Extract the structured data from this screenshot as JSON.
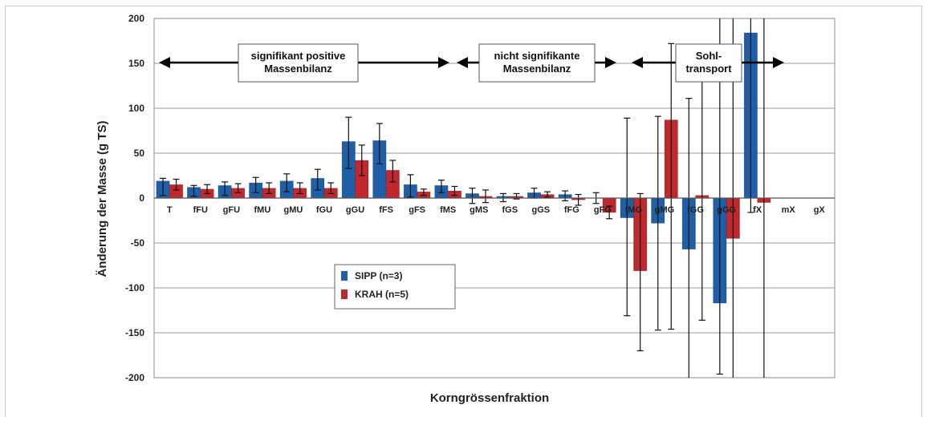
{
  "chart_data": {
    "type": "bar",
    "xlabel": "Korngrössenfraktion",
    "ylabel": "Änderung der Masse (g TS)",
    "ylim": [
      -200,
      200
    ],
    "yticks": [
      200,
      150,
      100,
      50,
      0,
      -50,
      -100,
      -150,
      -200
    ],
    "grid": true,
    "legend_position": "lower-left inside plot",
    "categories": [
      "T",
      "fFU",
      "gFU",
      "fMU",
      "gMU",
      "fGU",
      "gGU",
      "fFS",
      "gFS",
      "fMS",
      "gMS",
      "fGS",
      "gGS",
      "fFG",
      "gFG",
      "fMG",
      "gMG",
      "fGG",
      "gGG",
      "fX",
      "mX",
      "gX"
    ],
    "series": [
      {
        "name": "SIPP (n=3)",
        "color": "#1f5fa8",
        "values": [
          19,
          12,
          14,
          17,
          19,
          22,
          63,
          64,
          15,
          14,
          5,
          2,
          6,
          4,
          0,
          -22,
          -28,
          -57,
          -117,
          184,
          0,
          0
        ],
        "err_low": [
          16,
          10,
          11,
          11,
          12,
          13,
          30,
          26,
          14,
          8,
          11,
          6,
          6,
          7,
          6,
          109,
          119,
          170,
          79,
          200,
          0,
          0
        ],
        "err_high": [
          3,
          2,
          4,
          6,
          8,
          10,
          27,
          19,
          11,
          6,
          6,
          3,
          5,
          4,
          6,
          111,
          119,
          168,
          320,
          200,
          0,
          0
        ]
      },
      {
        "name": "KRAH (n=5)",
        "color": "#c0282d",
        "values": [
          15,
          10,
          11,
          11,
          11,
          11,
          42,
          31,
          7,
          8,
          2,
          2,
          4,
          -2,
          -16,
          -81,
          87,
          3,
          -45,
          -5,
          0,
          0
        ],
        "err_low": [
          6,
          5,
          5,
          6,
          6,
          6,
          17,
          13,
          4,
          5,
          7,
          3,
          3,
          6,
          7,
          89,
          233,
          139,
          155,
          195,
          0,
          0
        ],
        "err_high": [
          6,
          5,
          5,
          6,
          6,
          6,
          17,
          11,
          3,
          5,
          7,
          3,
          3,
          6,
          7,
          86,
          85,
          141,
          245,
          205,
          0,
          0
        ]
      }
    ],
    "annotations": [
      {
        "lines": [
          "signifikant positive",
          "Massenbilanz"
        ]
      },
      {
        "lines": [
          "nicht signifikante",
          "Massenbilanz"
        ]
      },
      {
        "lines": [
          "Sohl-",
          "transport"
        ]
      }
    ]
  }
}
